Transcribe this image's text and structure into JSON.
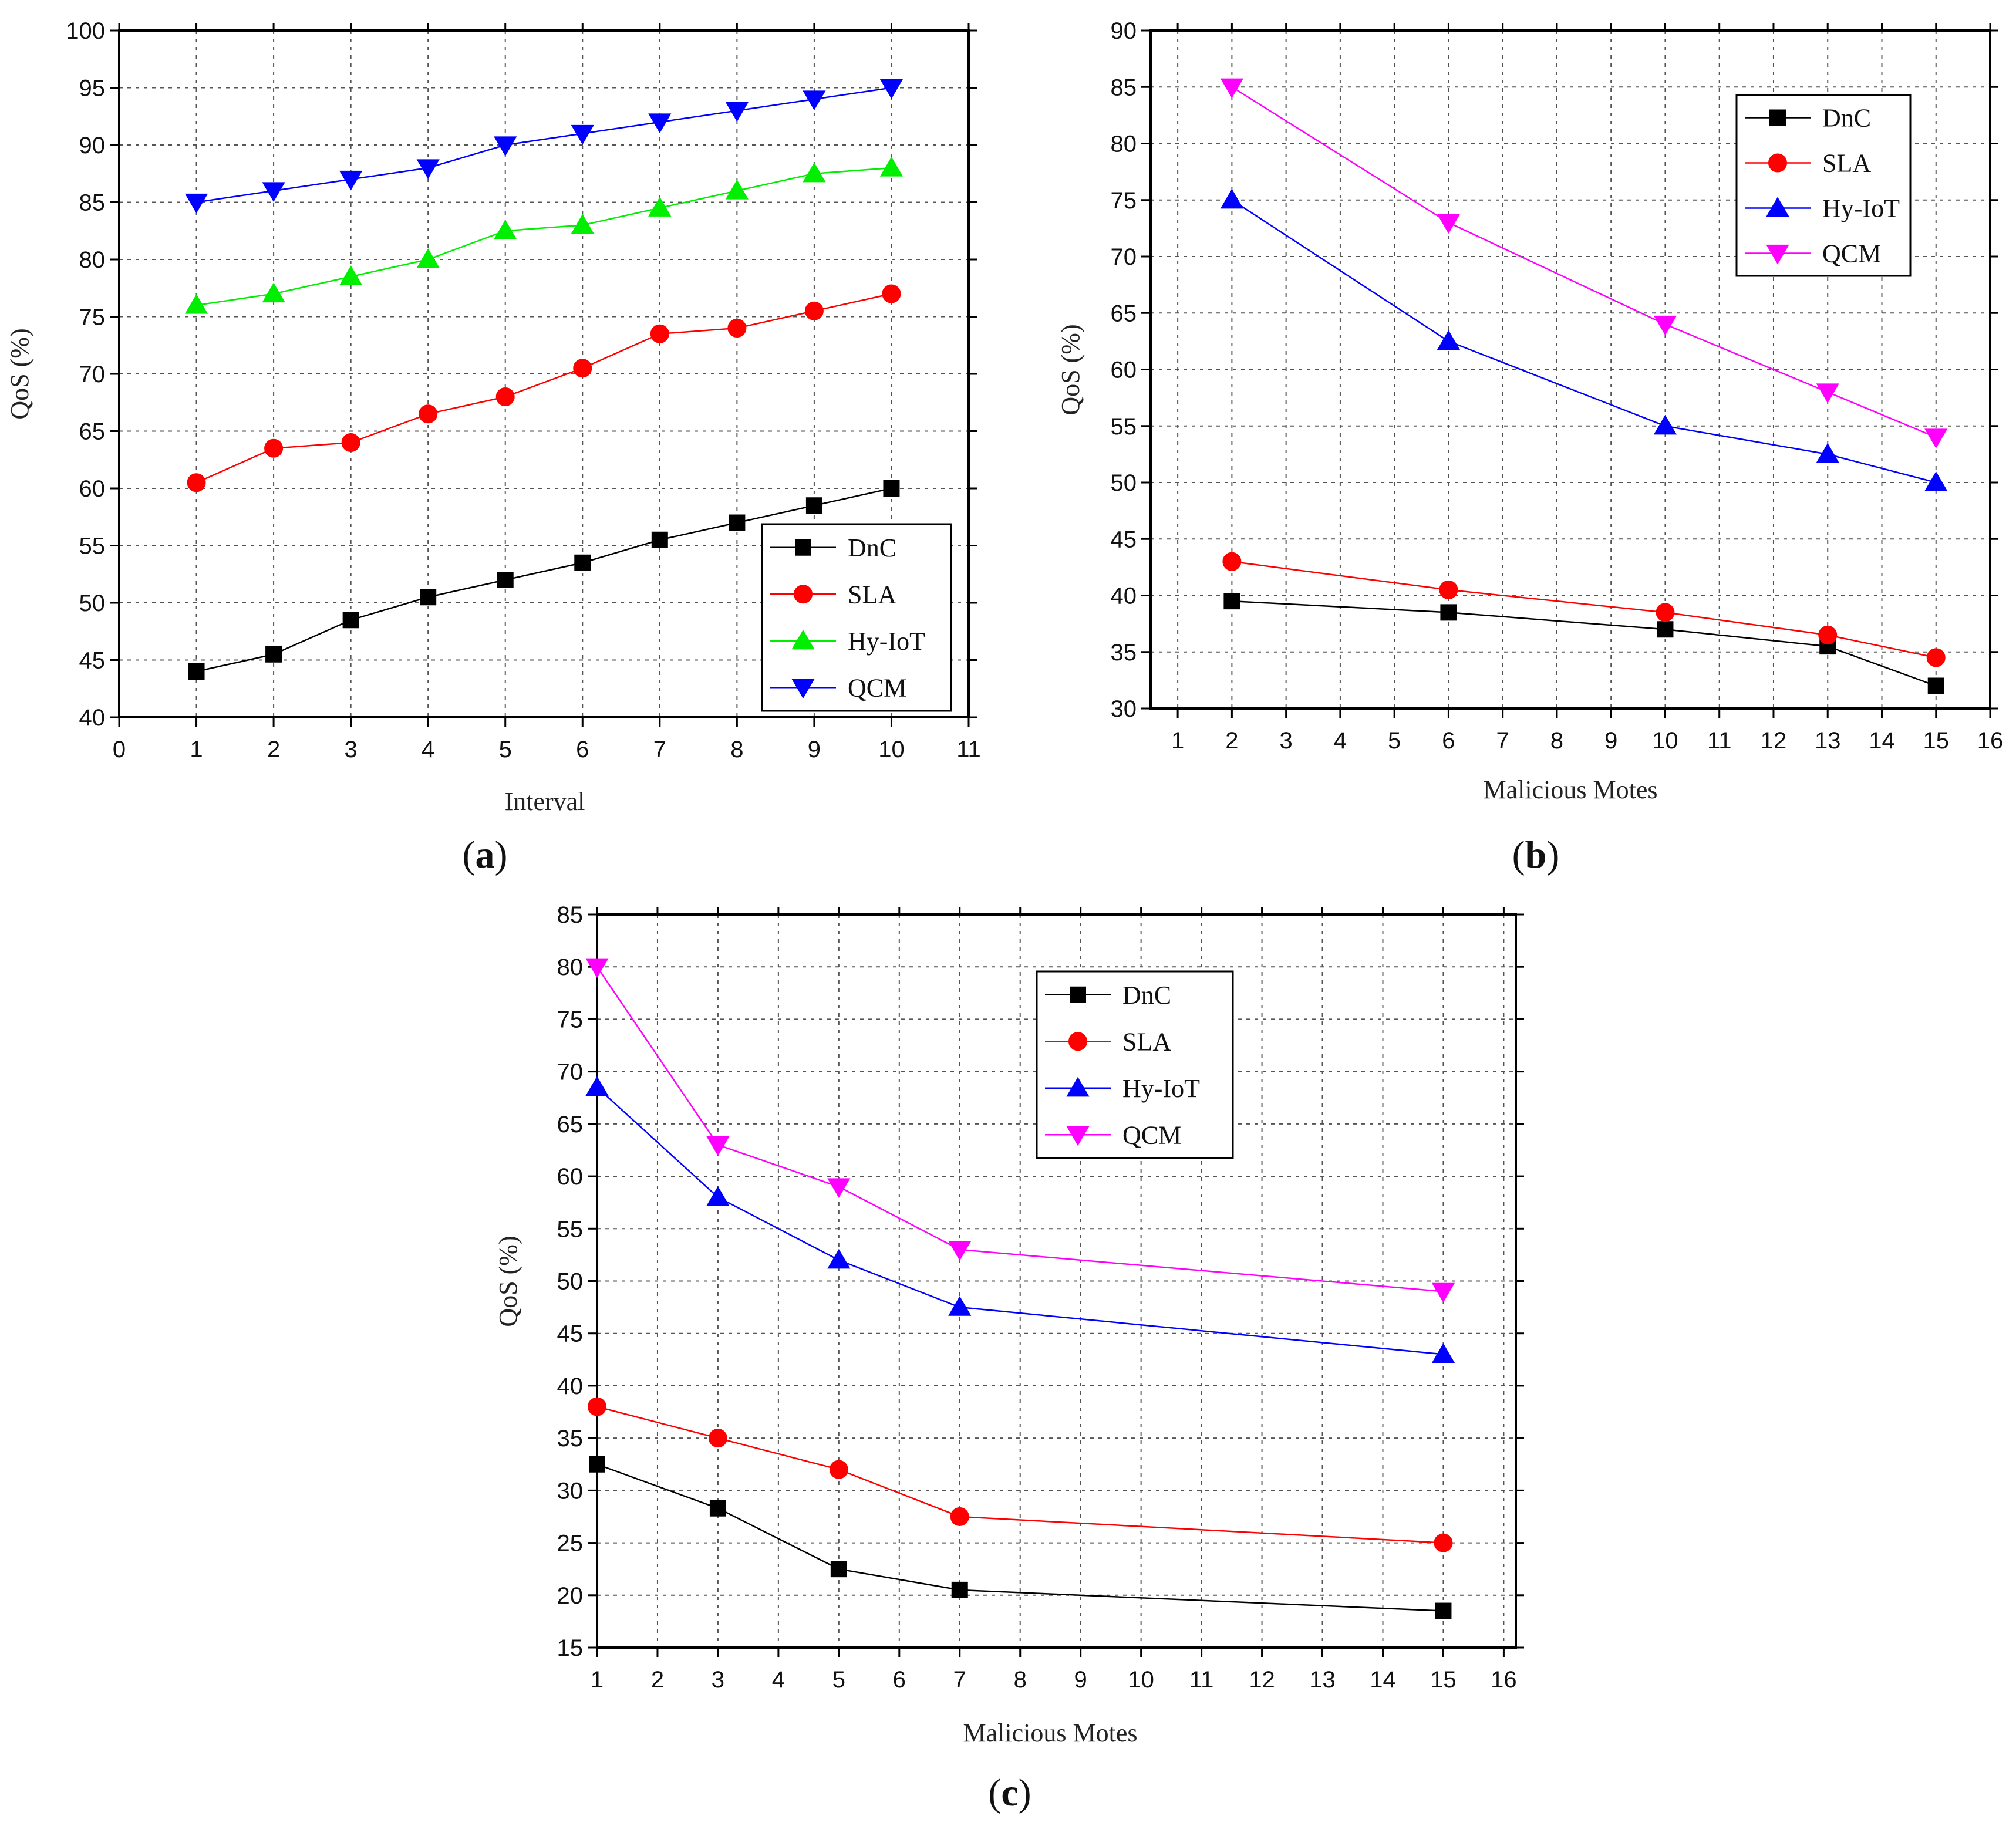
{
  "chart_data": [
    {
      "id": "a",
      "type": "line",
      "caption": "a",
      "xlabel": "Interval",
      "ylabel": "QoS (%)",
      "xlim": [
        0,
        11
      ],
      "ylim": [
        40,
        100
      ],
      "xticks": [
        0,
        1,
        2,
        3,
        4,
        5,
        6,
        7,
        8,
        9,
        10,
        11
      ],
      "yticks": [
        40,
        45,
        50,
        55,
        60,
        65,
        70,
        75,
        80,
        85,
        90,
        95,
        100
      ],
      "grid": true,
      "legend_position": "bottom-right",
      "x": [
        1,
        2,
        3,
        4,
        5,
        6,
        7,
        8,
        9,
        10
      ],
      "series": [
        {
          "name": "DnC",
          "color": "#000000",
          "marker": "square",
          "values": [
            44,
            45.5,
            48.5,
            50.5,
            52,
            53.5,
            55.5,
            57,
            58.5,
            60
          ]
        },
        {
          "name": "SLA",
          "color": "#ff0000",
          "marker": "circle",
          "values": [
            60.5,
            63.5,
            64,
            66.5,
            68,
            70.5,
            73.5,
            74,
            75.5,
            77
          ]
        },
        {
          "name": "Hy-IoT",
          "color": "#00ee00",
          "marker": "triangle-up",
          "values": [
            76,
            77,
            78.5,
            80,
            82.5,
            83,
            84.5,
            86,
            87.5,
            88
          ]
        },
        {
          "name": "QCM",
          "color": "#0000ff",
          "marker": "triangle-down",
          "values": [
            85,
            86,
            87,
            88,
            90,
            91,
            92,
            93,
            94,
            95
          ]
        }
      ]
    },
    {
      "id": "b",
      "type": "line",
      "caption": "b",
      "xlabel": "Malicious Motes",
      "ylabel": "QoS (%)",
      "xlim": [
        0.5,
        16
      ],
      "ylim": [
        30,
        90
      ],
      "xticks": [
        1,
        2,
        3,
        4,
        5,
        6,
        7,
        8,
        9,
        10,
        11,
        12,
        13,
        14,
        15,
        16
      ],
      "yticks": [
        30,
        35,
        40,
        45,
        50,
        55,
        60,
        65,
        70,
        75,
        80,
        85,
        90
      ],
      "grid": true,
      "legend_position": "top-right",
      "x": [
        2,
        6,
        10,
        13,
        15
      ],
      "series": [
        {
          "name": "DnC",
          "color": "#000000",
          "marker": "square",
          "values": [
            39.5,
            38.5,
            37,
            35.5,
            32
          ]
        },
        {
          "name": "SLA",
          "color": "#ff0000",
          "marker": "circle",
          "values": [
            43,
            40.5,
            38.5,
            36.5,
            34.5
          ]
        },
        {
          "name": "Hy-IoT",
          "color": "#0000ff",
          "marker": "triangle-up",
          "values": [
            75,
            62.5,
            55,
            52.5,
            50
          ]
        },
        {
          "name": "QCM",
          "color": "#ff00ff",
          "marker": "triangle-down",
          "values": [
            85,
            73,
            64,
            58,
            54
          ]
        }
      ]
    },
    {
      "id": "c",
      "type": "line",
      "caption": "c",
      "xlabel": "Malicious Motes",
      "ylabel": "QoS (%)",
      "xlim": [
        1,
        16.2
      ],
      "ylim": [
        15,
        85
      ],
      "xticks": [
        1,
        2,
        3,
        4,
        5,
        6,
        7,
        8,
        9,
        10,
        11,
        12,
        13,
        14,
        15,
        16
      ],
      "yticks": [
        15,
        20,
        25,
        30,
        35,
        40,
        45,
        50,
        55,
        60,
        65,
        70,
        75,
        80,
        85
      ],
      "grid": true,
      "legend_position": "top-center",
      "x": [
        1,
        3,
        5,
        7,
        15
      ],
      "series": [
        {
          "name": "DnC",
          "color": "#000000",
          "marker": "square",
          "values": [
            32.5,
            28.3,
            22.5,
            20.5,
            18.5
          ]
        },
        {
          "name": "SLA",
          "color": "#ff0000",
          "marker": "circle",
          "values": [
            38,
            35,
            32,
            27.5,
            25
          ]
        },
        {
          "name": "Hy-IoT",
          "color": "#0000ff",
          "marker": "triangle-up",
          "values": [
            68.5,
            58,
            52,
            47.5,
            43
          ]
        },
        {
          "name": "QCM",
          "color": "#ff00ff",
          "marker": "triangle-down",
          "values": [
            80,
            63,
            59,
            53,
            49
          ]
        }
      ]
    }
  ]
}
